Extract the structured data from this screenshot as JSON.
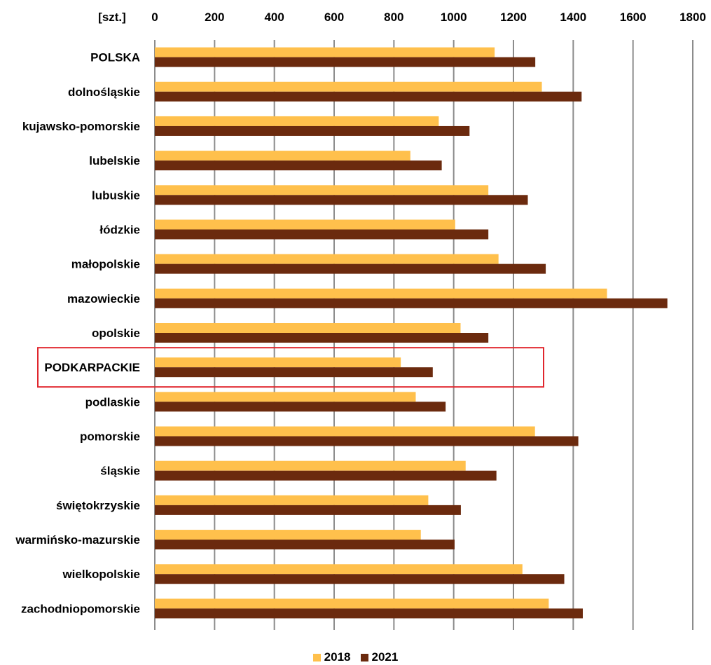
{
  "chart_data": {
    "type": "bar",
    "orientation": "horizontal",
    "unit_label": "[szt.]",
    "xlim": [
      0,
      1800
    ],
    "x_ticks": [
      0,
      200,
      400,
      600,
      800,
      1000,
      1200,
      1400,
      1600,
      1800
    ],
    "grid": "vertical",
    "legend_position": "bottom",
    "categories": [
      "POLSKA",
      "dolnośląskie",
      "kujawsko-pomorskie",
      "lubelskie",
      "lubuskie",
      "łódzkie",
      "małopolskie",
      "mazowieckie",
      "opolskie",
      "PODKARPACKIE",
      "podlaskie",
      "pomorskie",
      "śląskie",
      "świętokrzyskie",
      "warmińsko-mazurskie",
      "wielkopolskie",
      "zachodniopomorskie"
    ],
    "highlighted_category": "PODKARPACKIE",
    "series": [
      {
        "name": "2018",
        "color": "#ffc04c",
        "values": [
          1137,
          1295,
          950,
          855,
          1116,
          1005,
          1150,
          1513,
          1023,
          823,
          873,
          1272,
          1040,
          915,
          890,
          1230,
          1318
        ]
      },
      {
        "name": "2021",
        "color": "#6b2a0e",
        "values": [
          1273,
          1428,
          1053,
          960,
          1248,
          1116,
          1308,
          1715,
          1116,
          930,
          973,
          1417,
          1143,
          1024,
          1003,
          1370,
          1432
        ]
      }
    ]
  }
}
